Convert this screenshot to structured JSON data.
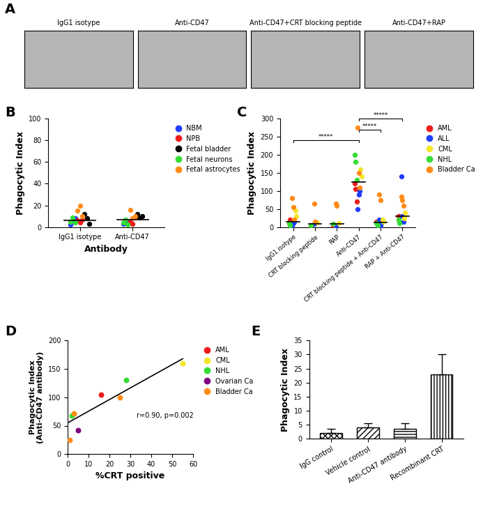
{
  "chart_data": [
    {
      "type": "image",
      "panel_label": "A",
      "categories": [
        "IgG1 isotype",
        "Anti-CD47",
        "Anti-CD47+CRT blocking peptide",
        "Anti-CD47+RAP"
      ]
    },
    {
      "type": "strip",
      "panel_label": "B",
      "categories": [
        "IgG1 isotype",
        "Anti-CD47"
      ],
      "x_label": "Antibody",
      "y_label": "Phagocytic Index",
      "ylim": [
        0,
        100
      ],
      "yticks": [
        0,
        20,
        40,
        60,
        80,
        100
      ],
      "medians": [
        6,
        7
      ],
      "legend": "right",
      "series": [
        {
          "name": "NBM",
          "color": "#1f3dff",
          "values": [
            [
              2,
              5,
              8
            ],
            [
              3,
              6,
              4
            ]
          ]
        },
        {
          "name": "NPB",
          "color": "#ee1c1c",
          "values": [
            [
              6,
              4,
              7
            ],
            [
              5,
              3,
              9
            ]
          ]
        },
        {
          "name": "Fetal bladder",
          "color": "#000000",
          "values": [
            [
              12,
              8,
              3
            ],
            [
              12,
              9,
              10
            ]
          ]
        },
        {
          "name": "Fetal neurons",
          "color": "#33dd33",
          "values": [
            [
              5,
              9,
              4
            ],
            [
              4,
              7,
              2
            ]
          ]
        },
        {
          "name": "Fetal astrocytes",
          "color": "#ff8c1a",
          "values": [
            [
              15,
              20,
              10
            ],
            [
              16,
              8,
              10
            ]
          ]
        }
      ]
    },
    {
      "type": "strip",
      "panel_label": "C",
      "categories": [
        "IgG1 isotype",
        "CRT blocking peptide",
        "RAP",
        "Anti-CD47",
        "CRT blocking peptide + Anti-CD47",
        "RAP + Anti-CD47"
      ],
      "y_label": "Phagocytic Index",
      "ylim": [
        0,
        300
      ],
      "yticks": [
        0,
        50,
        100,
        150,
        200,
        250,
        300
      ],
      "medians": [
        15,
        8,
        8,
        125,
        12,
        30
      ],
      "legend": "right",
      "comparisons": [
        {
          "from": 0,
          "to": 3,
          "label": "*****"
        },
        {
          "from": 3,
          "to": 4,
          "label": "*****"
        },
        {
          "from": 3,
          "to": 5,
          "label": "*****"
        }
      ],
      "series": [
        {
          "name": "AML",
          "color": "#ee1c1c",
          "values": [
            [
              10,
              20,
              5
            ],
            [
              5
            ],
            [
              5
            ],
            [
              120,
              105,
              70
            ],
            [
              15,
              10
            ],
            [
              30,
              15
            ]
          ]
        },
        {
          "name": "ALL",
          "color": "#1f3dff",
          "values": [
            [
              5,
              10,
              15
            ],
            [
              8
            ],
            [
              3
            ],
            [
              50,
              90,
              100
            ],
            [
              20,
              5,
              10
            ],
            [
              140,
              30,
              15
            ]
          ]
        },
        {
          "name": "CML",
          "color": "#f5e62a",
          "values": [
            [
              45,
              30
            ],
            [
              12
            ],
            [
              10
            ],
            [
              160,
              140
            ],
            [
              20,
              15
            ],
            [
              25,
              40
            ]
          ]
        },
        {
          "name": "NHL",
          "color": "#33dd33",
          "values": [
            [
              10,
              5
            ],
            [
              5
            ],
            [
              8
            ],
            [
              200,
              180,
              130
            ],
            [
              10,
              5
            ],
            [
              20,
              10
            ]
          ]
        },
        {
          "name": "Bladder Ca",
          "color": "#ff8c1a",
          "values": [
            [
              80,
              55,
              20
            ],
            [
              65,
              15
            ],
            [
              65,
              60
            ],
            [
              275,
              150,
              110
            ],
            [
              90,
              75
            ],
            [
              85,
              75,
              60
            ]
          ]
        }
      ]
    },
    {
      "type": "scatter",
      "panel_label": "D",
      "x_label": "%CRT positive",
      "y_label": "Phagocytic Index\n(Anti-CD47 antibody)",
      "xlim": [
        0,
        60
      ],
      "xticks": [
        0,
        10,
        20,
        30,
        40,
        50,
        60
      ],
      "ylim": [
        0,
        200
      ],
      "yticks": [
        0,
        50,
        100,
        150,
        200
      ],
      "annotations": [
        "r=0.90, p=0.002"
      ],
      "fit": {
        "x": [
          0,
          55
        ],
        "y": [
          55,
          168
        ]
      },
      "legend": "right",
      "series": [
        {
          "name": "AML",
          "color": "#ee1c1c",
          "x": [
            16
          ],
          "values": [
            105
          ]
        },
        {
          "name": "CML",
          "color": "#f5e62a",
          "x": [
            55
          ],
          "values": [
            160
          ]
        },
        {
          "name": "NHL",
          "color": "#33dd33",
          "x": [
            2,
            3,
            28
          ],
          "values": [
            68,
            71,
            130
          ]
        },
        {
          "name": "Ovarian Ca",
          "color": "#800080",
          "x": [
            5
          ],
          "values": [
            42
          ]
        },
        {
          "name": "Bladder Ca",
          "color": "#ff8c1a",
          "x": [
            1,
            3,
            25
          ],
          "values": [
            25,
            72,
            100
          ]
        }
      ]
    },
    {
      "type": "bar",
      "panel_label": "E",
      "categories": [
        "IgG control",
        "Vehicle control",
        "Anti-CD47 antibody",
        "Recombinant CRT"
      ],
      "values": [
        2,
        4,
        3.5,
        23
      ],
      "errors": [
        1.5,
        1.5,
        2,
        7
      ],
      "y_label": "Phagocytic Index",
      "ylim": [
        0,
        35
      ],
      "yticks": [
        0,
        5,
        10,
        15,
        20,
        25,
        30,
        35
      ],
      "color": "#ffffff"
    }
  ]
}
